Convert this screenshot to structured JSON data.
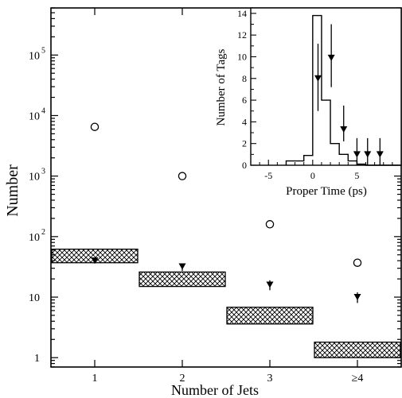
{
  "chart_data": [
    {
      "type": "scatter",
      "xlabel": "Number of Jets",
      "ylabel": "Number",
      "yscale": "log",
      "ylim": [
        0.7,
        600000
      ],
      "xlim": [
        0.5,
        4.5
      ],
      "categories": [
        "1",
        "2",
        "3",
        "≥4"
      ],
      "y_tick_labels": [
        "1",
        "10",
        "10",
        "10",
        "10",
        "10"
      ],
      "y_tick_exponents": [
        "",
        "",
        "2",
        "3",
        "4",
        "5"
      ],
      "series": [
        {
          "marker": "open-circle",
          "x": [
            1,
            2,
            3,
            4
          ],
          "y": [
            6500,
            1000,
            160,
            37
          ]
        },
        {
          "marker": "filled-triangle",
          "x": [
            1,
            2,
            3,
            4
          ],
          "y": [
            40,
            32,
            16,
            10
          ],
          "yerr_low": [
            36,
            27,
            13,
            8
          ],
          "yerr_high": [
            44,
            36,
            19,
            12
          ]
        }
      ],
      "bands": [
        {
          "x0": 0.5,
          "x1": 1.5,
          "y_low": 37,
          "y_high": 62
        },
        {
          "x0": 1.5,
          "x1": 2.5,
          "y_low": 15,
          "y_high": 26
        },
        {
          "x0": 2.5,
          "x1": 3.5,
          "y_low": 3.6,
          "y_high": 6.8
        },
        {
          "x0": 3.5,
          "x1": 4.5,
          "y_low": 1.0,
          "y_high": 1.8
        }
      ],
      "grid": false
    },
    {
      "type": "line",
      "xlabel": "Proper Time (ps)",
      "ylabel": "Number of Tags",
      "xlim": [
        -7,
        10
      ],
      "ylim": [
        0,
        14.5
      ],
      "x_ticks": [
        "-5",
        "0",
        "5"
      ],
      "y_ticks": [
        "0",
        "2",
        "4",
        "6",
        "8",
        "10",
        "12",
        "14"
      ],
      "histogram": {
        "edges": [
          -3,
          -1,
          0,
          1,
          2,
          3,
          4,
          5,
          6,
          10
        ],
        "values": [
          0.4,
          0.9,
          13.8,
          6.0,
          2.0,
          1.0,
          0.4,
          0.1,
          0.0
        ]
      },
      "points": {
        "x": [
          0.6,
          2.1,
          3.5,
          5.0,
          6.2,
          7.6
        ],
        "y": [
          8.0,
          9.9,
          3.3,
          1.0,
          1.0,
          1.0
        ],
        "yerr_low": [
          5.0,
          7.2,
          2.2,
          0.0,
          0.0,
          0.0
        ],
        "yerr_high": [
          11.2,
          13.0,
          5.5,
          2.5,
          2.5,
          2.5
        ]
      },
      "grid": false
    }
  ]
}
